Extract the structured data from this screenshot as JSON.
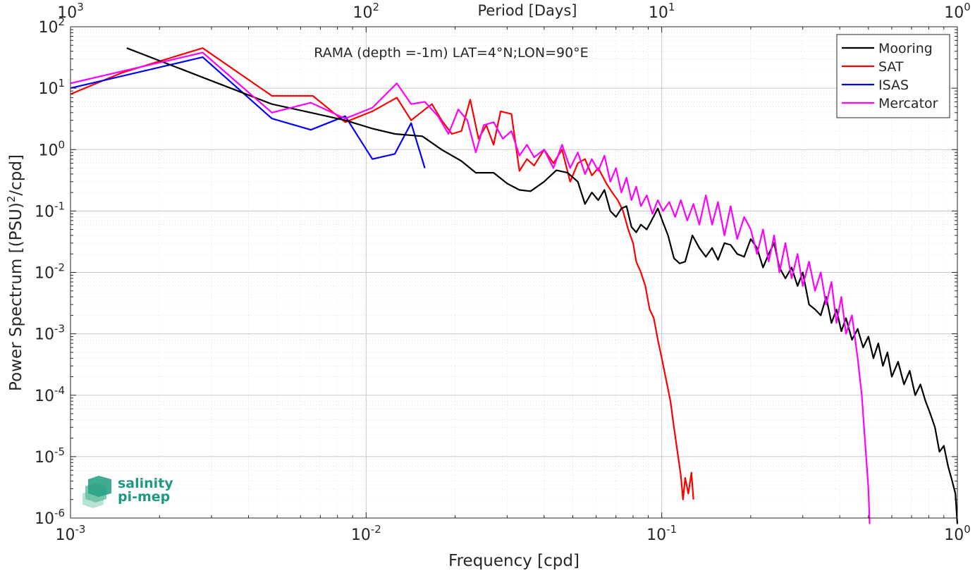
{
  "chart_data": {
    "type": "line",
    "title": "RAMA (depth =-1m) LAT=4°N;LON=90°E",
    "xlabel": "Frequency [cpd]",
    "ylabel": "Power Spectrum [(PSU)²/cpd]",
    "top_axis_label": "Period [Days]",
    "x_scale": "log",
    "y_scale": "log",
    "xlim": [
      0.001,
      1
    ],
    "ylim": [
      1e-06,
      100
    ],
    "x_ticks": [
      {
        "base": "10",
        "exp": "-3"
      },
      {
        "base": "10",
        "exp": "-2"
      },
      {
        "base": "10",
        "exp": "-1"
      },
      {
        "base": "10",
        "exp": "0"
      }
    ],
    "top_ticks": [
      {
        "base": "10",
        "exp": "3"
      },
      {
        "base": "10",
        "exp": "2"
      },
      {
        "base": "10",
        "exp": "1"
      },
      {
        "base": "10",
        "exp": "0"
      }
    ],
    "y_ticks": [
      {
        "base": "10",
        "exp": "2"
      },
      {
        "base": "10",
        "exp": "1"
      },
      {
        "base": "10",
        "exp": "0"
      },
      {
        "base": "10",
        "exp": "-1"
      },
      {
        "base": "10",
        "exp": "-2"
      },
      {
        "base": "10",
        "exp": "-3"
      },
      {
        "base": "10",
        "exp": "-4"
      },
      {
        "base": "10",
        "exp": "-5"
      },
      {
        "base": "10",
        "exp": "-6"
      }
    ],
    "grid": true,
    "legend_position": "top-right",
    "logo": {
      "line1": "salinity",
      "line2": "pi-mep"
    },
    "series": [
      {
        "name": "Mooring",
        "color": "#000000",
        "points": [
          [
            0.00155,
            45
          ],
          [
            0.0028,
            15
          ],
          [
            0.0048,
            5.5
          ],
          [
            0.0065,
            4.0
          ],
          [
            0.0085,
            3.0
          ],
          [
            0.0105,
            2.2
          ],
          [
            0.0125,
            1.8
          ],
          [
            0.0155,
            1.65
          ],
          [
            0.018,
            1.0
          ],
          [
            0.021,
            0.65
          ],
          [
            0.0235,
            0.42
          ],
          [
            0.027,
            0.42
          ],
          [
            0.03,
            0.28
          ],
          [
            0.033,
            0.22
          ],
          [
            0.036,
            0.21
          ],
          [
            0.04,
            0.3
          ],
          [
            0.044,
            0.46
          ],
          [
            0.048,
            0.42
          ],
          [
            0.052,
            0.3
          ],
          [
            0.055,
            0.13
          ],
          [
            0.058,
            0.2
          ],
          [
            0.061,
            0.15
          ],
          [
            0.064,
            0.22
          ],
          [
            0.067,
            0.1
          ],
          [
            0.07,
            0.08
          ],
          [
            0.073,
            0.11
          ],
          [
            0.076,
            0.12
          ],
          [
            0.079,
            0.055
          ],
          [
            0.082,
            0.045
          ],
          [
            0.085,
            0.06
          ],
          [
            0.089,
            0.05
          ],
          [
            0.093,
            0.075
          ],
          [
            0.097,
            0.11
          ],
          [
            0.101,
            0.065
          ],
          [
            0.105,
            0.04
          ],
          [
            0.11,
            0.017
          ],
          [
            0.115,
            0.014
          ],
          [
            0.12,
            0.015
          ],
          [
            0.127,
            0.04
          ],
          [
            0.134,
            0.025
          ],
          [
            0.141,
            0.018
          ],
          [
            0.148,
            0.025
          ],
          [
            0.155,
            0.016
          ],
          [
            0.163,
            0.03
          ],
          [
            0.171,
            0.028
          ],
          [
            0.18,
            0.02
          ],
          [
            0.19,
            0.018
          ],
          [
            0.2,
            0.035
          ],
          [
            0.21,
            0.025
          ],
          [
            0.22,
            0.012
          ],
          [
            0.23,
            0.02
          ],
          [
            0.24,
            0.03
          ],
          [
            0.25,
            0.012
          ],
          [
            0.262,
            0.008
          ],
          [
            0.275,
            0.012
          ],
          [
            0.288,
            0.006
          ],
          [
            0.3,
            0.01
          ],
          [
            0.315,
            0.003
          ],
          [
            0.33,
            0.0025
          ],
          [
            0.345,
            0.002
          ],
          [
            0.36,
            0.004
          ],
          [
            0.375,
            0.0015
          ],
          [
            0.39,
            0.0025
          ],
          [
            0.405,
            0.0011
          ],
          [
            0.42,
            0.0018
          ],
          [
            0.44,
            0.0008
          ],
          [
            0.46,
            0.0012
          ],
          [
            0.48,
            0.0006
          ],
          [
            0.5,
            0.0009
          ],
          [
            0.52,
            0.0004
          ],
          [
            0.54,
            0.0007
          ],
          [
            0.56,
            0.0003
          ],
          [
            0.58,
            0.0005
          ],
          [
            0.6,
            0.0002
          ],
          [
            0.63,
            0.00035
          ],
          [
            0.66,
            0.00015
          ],
          [
            0.69,
            0.00025
          ],
          [
            0.72,
            0.0001
          ],
          [
            0.75,
            0.00015
          ],
          [
            0.78,
            8e-05
          ],
          [
            0.81,
            5e-05
          ],
          [
            0.84,
            3e-05
          ],
          [
            0.87,
            1.2e-05
          ],
          [
            0.9,
            1.5e-05
          ],
          [
            0.93,
            7e-06
          ],
          [
            0.96,
            4e-06
          ],
          [
            0.985,
            2.5e-06
          ],
          [
            1.0,
            8e-07
          ]
        ]
      },
      {
        "name": "SAT",
        "color": "#ff0000",
        "points": [
          [
            0.001,
            8
          ],
          [
            0.0015,
            18
          ],
          [
            0.0028,
            45
          ],
          [
            0.0048,
            7.5
          ],
          [
            0.0066,
            7.5
          ],
          [
            0.0085,
            2.8
          ],
          [
            0.0105,
            4.2
          ],
          [
            0.0127,
            7.0
          ],
          [
            0.0142,
            3.0
          ],
          [
            0.0158,
            4.5
          ],
          [
            0.0167,
            5.5
          ],
          [
            0.018,
            3.0
          ],
          [
            0.0195,
            1.8
          ],
          [
            0.021,
            2.0
          ],
          [
            0.0225,
            6.5
          ],
          [
            0.024,
            1.5
          ],
          [
            0.0255,
            2.5
          ],
          [
            0.027,
            1.2
          ],
          [
            0.0285,
            4.2
          ],
          [
            0.031,
            3.8
          ],
          [
            0.033,
            0.45
          ],
          [
            0.035,
            0.7
          ],
          [
            0.037,
            0.55
          ],
          [
            0.04,
            1.0
          ],
          [
            0.043,
            0.6
          ],
          [
            0.046,
            1.0
          ],
          [
            0.049,
            0.3
          ],
          [
            0.052,
            0.6
          ],
          [
            0.055,
            0.7
          ],
          [
            0.058,
            0.38
          ],
          [
            0.061,
            0.5
          ],
          [
            0.065,
            0.28
          ],
          [
            0.068,
            0.2
          ],
          [
            0.071,
            0.15
          ],
          [
            0.074,
            0.1
          ],
          [
            0.077,
            0.05
          ],
          [
            0.08,
            0.03
          ],
          [
            0.082,
            0.015
          ],
          [
            0.085,
            0.01
          ],
          [
            0.088,
            0.006
          ],
          [
            0.091,
            0.0025
          ],
          [
            0.094,
            0.0018
          ],
          [
            0.097,
            0.0008
          ],
          [
            0.1,
            0.0004
          ],
          [
            0.103,
            0.0002
          ],
          [
            0.107,
            8e-05
          ],
          [
            0.11,
            3e-05
          ],
          [
            0.113,
            1.2e-05
          ],
          [
            0.116,
            5e-06
          ],
          [
            0.118,
            2e-06
          ],
          [
            0.12,
            4.5e-06
          ],
          [
            0.123,
            2.5e-06
          ],
          [
            0.126,
            5.5e-06
          ],
          [
            0.128,
            2e-06
          ]
        ]
      },
      {
        "name": "ISAS",
        "color": "#0000ff",
        "points": [
          [
            0.001,
            10
          ],
          [
            0.0028,
            32
          ],
          [
            0.0048,
            3.2
          ],
          [
            0.0065,
            2.1
          ],
          [
            0.0085,
            3.5
          ],
          [
            0.0105,
            0.7
          ],
          [
            0.0125,
            0.85
          ],
          [
            0.0142,
            2.7
          ],
          [
            0.0158,
            0.5
          ]
        ]
      },
      {
        "name": "Mercator",
        "color": "#ff00ff",
        "points": [
          [
            0.001,
            12
          ],
          [
            0.0028,
            38
          ],
          [
            0.0048,
            4.0
          ],
          [
            0.0065,
            5.8
          ],
          [
            0.0085,
            3.2
          ],
          [
            0.0105,
            4.8
          ],
          [
            0.0127,
            12
          ],
          [
            0.0142,
            5.5
          ],
          [
            0.0158,
            6.0
          ],
          [
            0.0175,
            3.5
          ],
          [
            0.019,
            1.8
          ],
          [
            0.0205,
            4.5
          ],
          [
            0.022,
            3.0
          ],
          [
            0.0235,
            0.9
          ],
          [
            0.025,
            2.5
          ],
          [
            0.027,
            2.8
          ],
          [
            0.029,
            1.5
          ],
          [
            0.031,
            2.0
          ],
          [
            0.033,
            0.8
          ],
          [
            0.035,
            1.2
          ],
          [
            0.037,
            0.75
          ],
          [
            0.04,
            1.0
          ],
          [
            0.043,
            0.5
          ],
          [
            0.046,
            1.2
          ],
          [
            0.049,
            0.5
          ],
          [
            0.052,
            0.9
          ],
          [
            0.055,
            0.4
          ],
          [
            0.058,
            0.7
          ],
          [
            0.061,
            0.45
          ],
          [
            0.064,
            0.8
          ],
          [
            0.067,
            0.3
          ],
          [
            0.07,
            0.5
          ],
          [
            0.073,
            0.2
          ],
          [
            0.076,
            0.35
          ],
          [
            0.079,
            0.15
          ],
          [
            0.082,
            0.25
          ],
          [
            0.085,
            0.12
          ],
          [
            0.089,
            0.18
          ],
          [
            0.093,
            0.09
          ],
          [
            0.097,
            0.15
          ],
          [
            0.101,
            0.1
          ],
          [
            0.106,
            0.14
          ],
          [
            0.111,
            0.08
          ],
          [
            0.116,
            0.15
          ],
          [
            0.122,
            0.07
          ],
          [
            0.128,
            0.13
          ],
          [
            0.134,
            0.06
          ],
          [
            0.141,
            0.18
          ],
          [
            0.148,
            0.06
          ],
          [
            0.155,
            0.14
          ],
          [
            0.163,
            0.04
          ],
          [
            0.171,
            0.12
          ],
          [
            0.18,
            0.035
          ],
          [
            0.19,
            0.08
          ],
          [
            0.2,
            0.05
          ],
          [
            0.21,
            0.02
          ],
          [
            0.22,
            0.05
          ],
          [
            0.23,
            0.015
          ],
          [
            0.24,
            0.04
          ],
          [
            0.25,
            0.01
          ],
          [
            0.262,
            0.03
          ],
          [
            0.275,
            0.008
          ],
          [
            0.288,
            0.02
          ],
          [
            0.3,
            0.006
          ],
          [
            0.315,
            0.015
          ],
          [
            0.33,
            0.005
          ],
          [
            0.345,
            0.01
          ],
          [
            0.36,
            0.003
          ],
          [
            0.375,
            0.007
          ],
          [
            0.39,
            0.0015
          ],
          [
            0.405,
            0.004
          ],
          [
            0.42,
            0.001
          ],
          [
            0.44,
            0.002
          ],
          [
            0.46,
            0.0004
          ],
          [
            0.475,
            0.0001
          ],
          [
            0.49,
            1.2e-05
          ],
          [
            0.5,
            3e-06
          ],
          [
            0.505,
            8e-07
          ]
        ]
      }
    ]
  }
}
